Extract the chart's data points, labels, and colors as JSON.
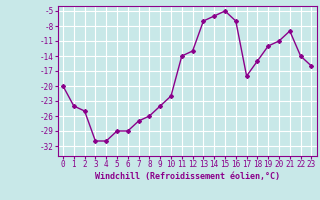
{
  "x": [
    0,
    1,
    2,
    3,
    4,
    5,
    6,
    7,
    8,
    9,
    10,
    11,
    12,
    13,
    14,
    15,
    16,
    17,
    18,
    19,
    20,
    21,
    22,
    23
  ],
  "y": [
    -20,
    -24,
    -25,
    -31,
    -31,
    -29,
    -29,
    -27,
    -26,
    -24,
    -22,
    -14,
    -13,
    -7,
    -6,
    -5,
    -7,
    -18,
    -15,
    -12,
    -11,
    -9,
    -14,
    -16
  ],
  "line_color": "#8B008B",
  "marker": "D",
  "marker_size": 2,
  "bg_color": "#c8e8e8",
  "grid_color": "#ffffff",
  "xlabel": "Windchill (Refroidissement éolien,°C)",
  "xlabel_fontsize": 6,
  "yticks": [
    -5,
    -8,
    -11,
    -14,
    -17,
    -20,
    -23,
    -26,
    -29,
    -32
  ],
  "ylim": [
    -34,
    -4
  ],
  "xlim": [
    -0.5,
    23.5
  ],
  "xticks": [
    0,
    1,
    2,
    3,
    4,
    5,
    6,
    7,
    8,
    9,
    10,
    11,
    12,
    13,
    14,
    15,
    16,
    17,
    18,
    19,
    20,
    21,
    22,
    23
  ],
  "tick_fontsize": 5.5,
  "line_width": 1.0
}
